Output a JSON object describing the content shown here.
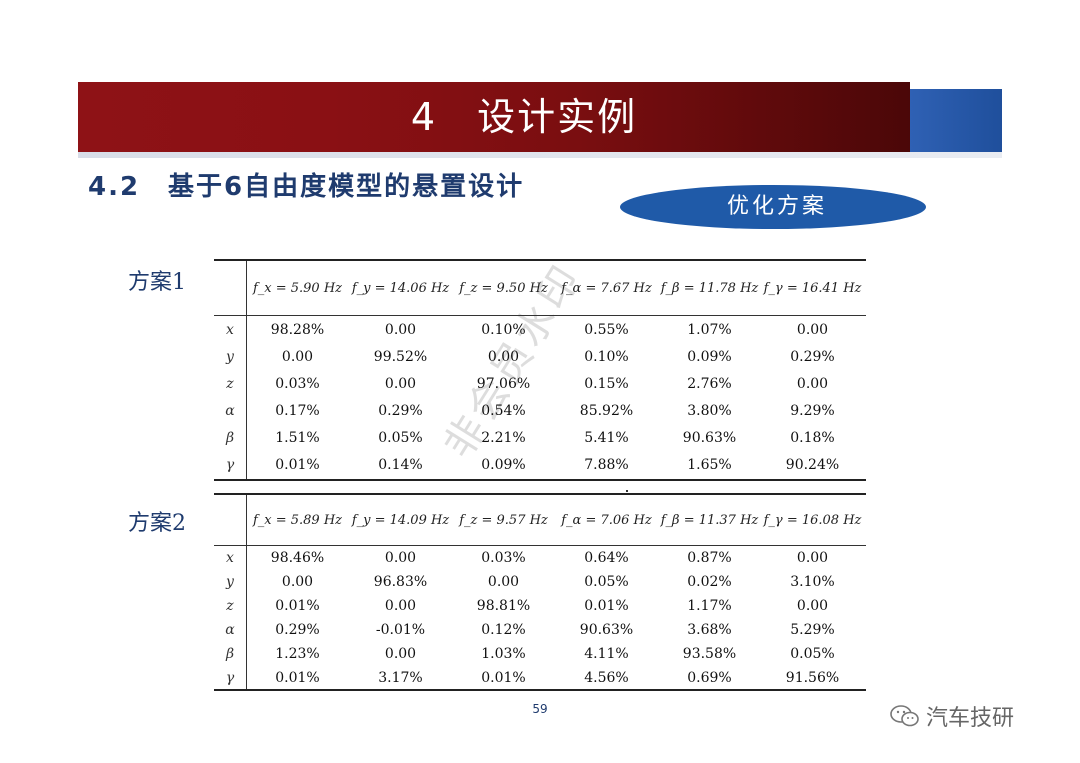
{
  "header": {
    "title": "4　设计实例",
    "subtitle": "4.2　基于6自由度模型的悬置设计",
    "badge": "优化方案"
  },
  "watermark_text": "非会员水印",
  "tables": [
    {
      "label": "方案1",
      "headers": [
        "f_x = 5.90 Hz",
        "f_y = 14.06 Hz",
        "f_z = 9.50 Hz",
        "f_α = 7.67 Hz",
        "f_β = 11.78 Hz",
        "f_γ = 16.41 Hz"
      ],
      "rows": [
        {
          "label": "x",
          "values": [
            "98.28%",
            "0.00",
            "0.10%",
            "0.55%",
            "1.07%",
            "0.00"
          ]
        },
        {
          "label": "y",
          "values": [
            "0.00",
            "99.52%",
            "0.00",
            "0.10%",
            "0.09%",
            "0.29%"
          ]
        },
        {
          "label": "z",
          "values": [
            "0.03%",
            "0.00",
            "97.06%",
            "0.15%",
            "2.76%",
            "0.00"
          ]
        },
        {
          "label": "α",
          "values": [
            "0.17%",
            "0.29%",
            "0.54%",
            "85.92%",
            "3.80%",
            "9.29%"
          ]
        },
        {
          "label": "β",
          "values": [
            "1.51%",
            "0.05%",
            "2.21%",
            "5.41%",
            "90.63%",
            "0.18%"
          ]
        },
        {
          "label": "γ",
          "values": [
            "0.01%",
            "0.14%",
            "0.09%",
            "7.88%",
            "1.65%",
            "90.24%"
          ]
        }
      ]
    },
    {
      "label": "方案2",
      "headers": [
        "f_x = 5.89 Hz",
        "f_y = 14.09 Hz",
        "f_z = 9.57 Hz",
        "f_α = 7.06 Hz",
        "f_β = 11.37 Hz",
        "f_γ = 16.08 Hz"
      ],
      "rows": [
        {
          "label": "x",
          "values": [
            "98.46%",
            "0.00",
            "0.03%",
            "0.64%",
            "0.87%",
            "0.00"
          ]
        },
        {
          "label": "y",
          "values": [
            "0.00",
            "96.83%",
            "0.00",
            "0.05%",
            "0.02%",
            "3.10%"
          ]
        },
        {
          "label": "z",
          "values": [
            "0.01%",
            "0.00",
            "98.81%",
            "0.01%",
            "1.17%",
            "0.00"
          ]
        },
        {
          "label": "α",
          "values": [
            "0.29%",
            "-0.01%",
            "0.12%",
            "90.63%",
            "3.68%",
            "5.29%"
          ]
        },
        {
          "label": "β",
          "values": [
            "1.23%",
            "0.00",
            "1.03%",
            "4.11%",
            "93.58%",
            "0.05%"
          ]
        },
        {
          "label": "γ",
          "values": [
            "0.01%",
            "3.17%",
            "0.01%",
            "4.56%",
            "0.69%",
            "91.56%"
          ]
        }
      ]
    }
  ],
  "footer": {
    "page_number": "59",
    "brand": "汽车技研",
    "brand_icon": "wechat-icon"
  }
}
